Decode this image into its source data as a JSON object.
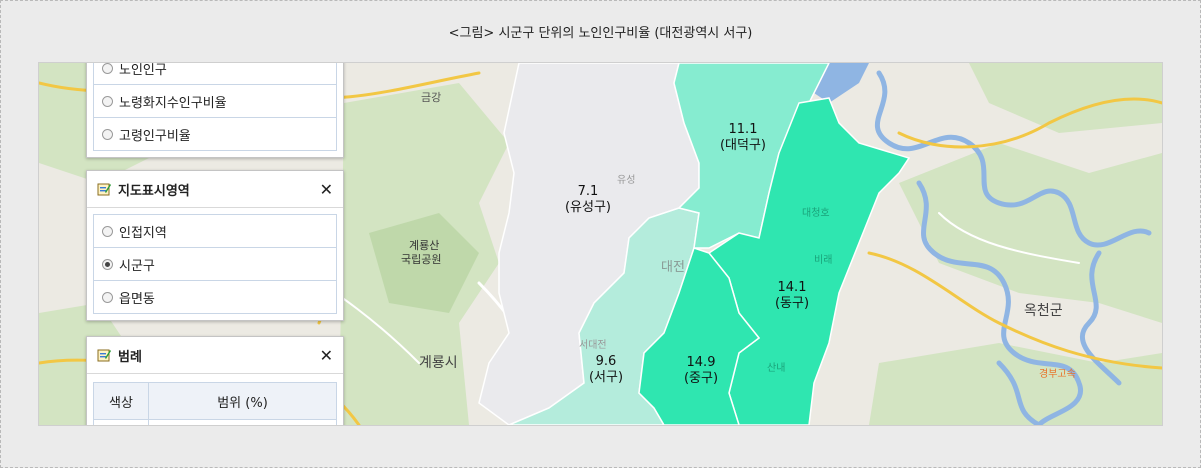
{
  "caption": "<그림> 시군구 단위의 노인인구비율 (대전광역시 서구)",
  "panels": {
    "indicator": {
      "options": [
        {
          "label": "노인인구",
          "selected": false
        },
        {
          "label": "노령화지수인구비율",
          "selected": false
        },
        {
          "label": "고령인구비율",
          "selected": false
        }
      ]
    },
    "display_area": {
      "title": "지도표시영역",
      "close": "✕",
      "options": [
        {
          "label": "인접지역",
          "selected": false
        },
        {
          "label": "시군구",
          "selected": true
        },
        {
          "label": "읍면동",
          "selected": false
        }
      ]
    },
    "legend": {
      "title": "범례",
      "close": "✕",
      "columns": [
        "색상",
        "범위 (%)"
      ]
    }
  },
  "map": {
    "regions": [
      {
        "name": "(유성구)",
        "value": "7.1",
        "fill": "#eaeaed"
      },
      {
        "name": "(서구)",
        "value": "9.6",
        "fill": "#b4ecdc"
      },
      {
        "name": "(대덕구)",
        "value": "11.1",
        "fill": "#86ecd0"
      },
      {
        "name": "(동구)",
        "value": "14.1",
        "fill": "#2fe6b0"
      },
      {
        "name": "(중구)",
        "value": "14.9",
        "fill": "#2fe6b0"
      }
    ],
    "places": {
      "geumgang": "금강",
      "gyeryongsan_1": "계룡산",
      "gyeryongsan_2": "국립공원",
      "gyeryong": "계룡시",
      "okcheon": "옥천군",
      "expressway": "경부고속",
      "yuseong": "유성",
      "daejeon": "대전",
      "seodaejeon": "서대전",
      "daedeok_small": "대청호",
      "biraeng": "비래",
      "sannae": "산내"
    },
    "colors": {
      "land": "#eceae3",
      "forest": "#cfe3bf",
      "water": "#8fb5e3",
      "road_major": "#f2c744",
      "road_minor": "#ffffff",
      "highway_label": "#e8732a"
    }
  }
}
